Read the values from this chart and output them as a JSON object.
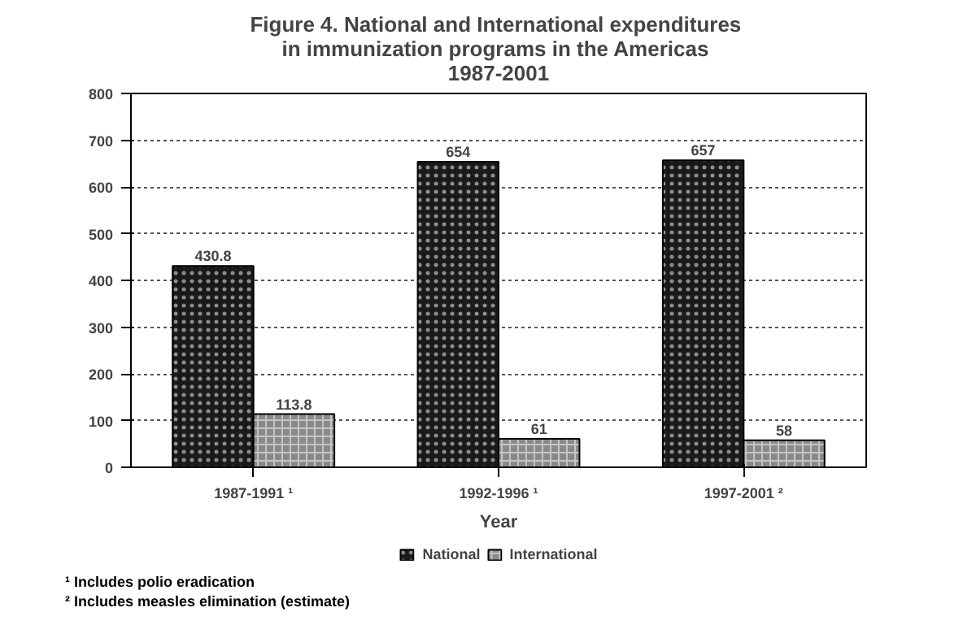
{
  "chart_data": {
    "type": "bar",
    "title": "Figure 4.  National and International expenditures\nin immunization programs  in the Americas\n1987-2001",
    "xlabel": "Year",
    "categories": [
      "1987-1991 ¹",
      "1992-1996 ¹",
      "1997-2001 ²"
    ],
    "series": [
      {
        "name": "National",
        "color": "#1a1a1a",
        "values": [
          430.8,
          654,
          657
        ]
      },
      {
        "name": "International",
        "color": "#8a8a8a",
        "values": [
          113.8,
          61,
          58
        ]
      }
    ],
    "ylim": [
      0,
      800
    ],
    "yticks": [
      0,
      100,
      200,
      300,
      400,
      500,
      600,
      700,
      800
    ],
    "grid": "y",
    "legend": "bottom",
    "data_labels": true,
    "annotations": [
      "¹ Includes polio eradication",
      "² Includes measles elimination (estimate)"
    ]
  }
}
